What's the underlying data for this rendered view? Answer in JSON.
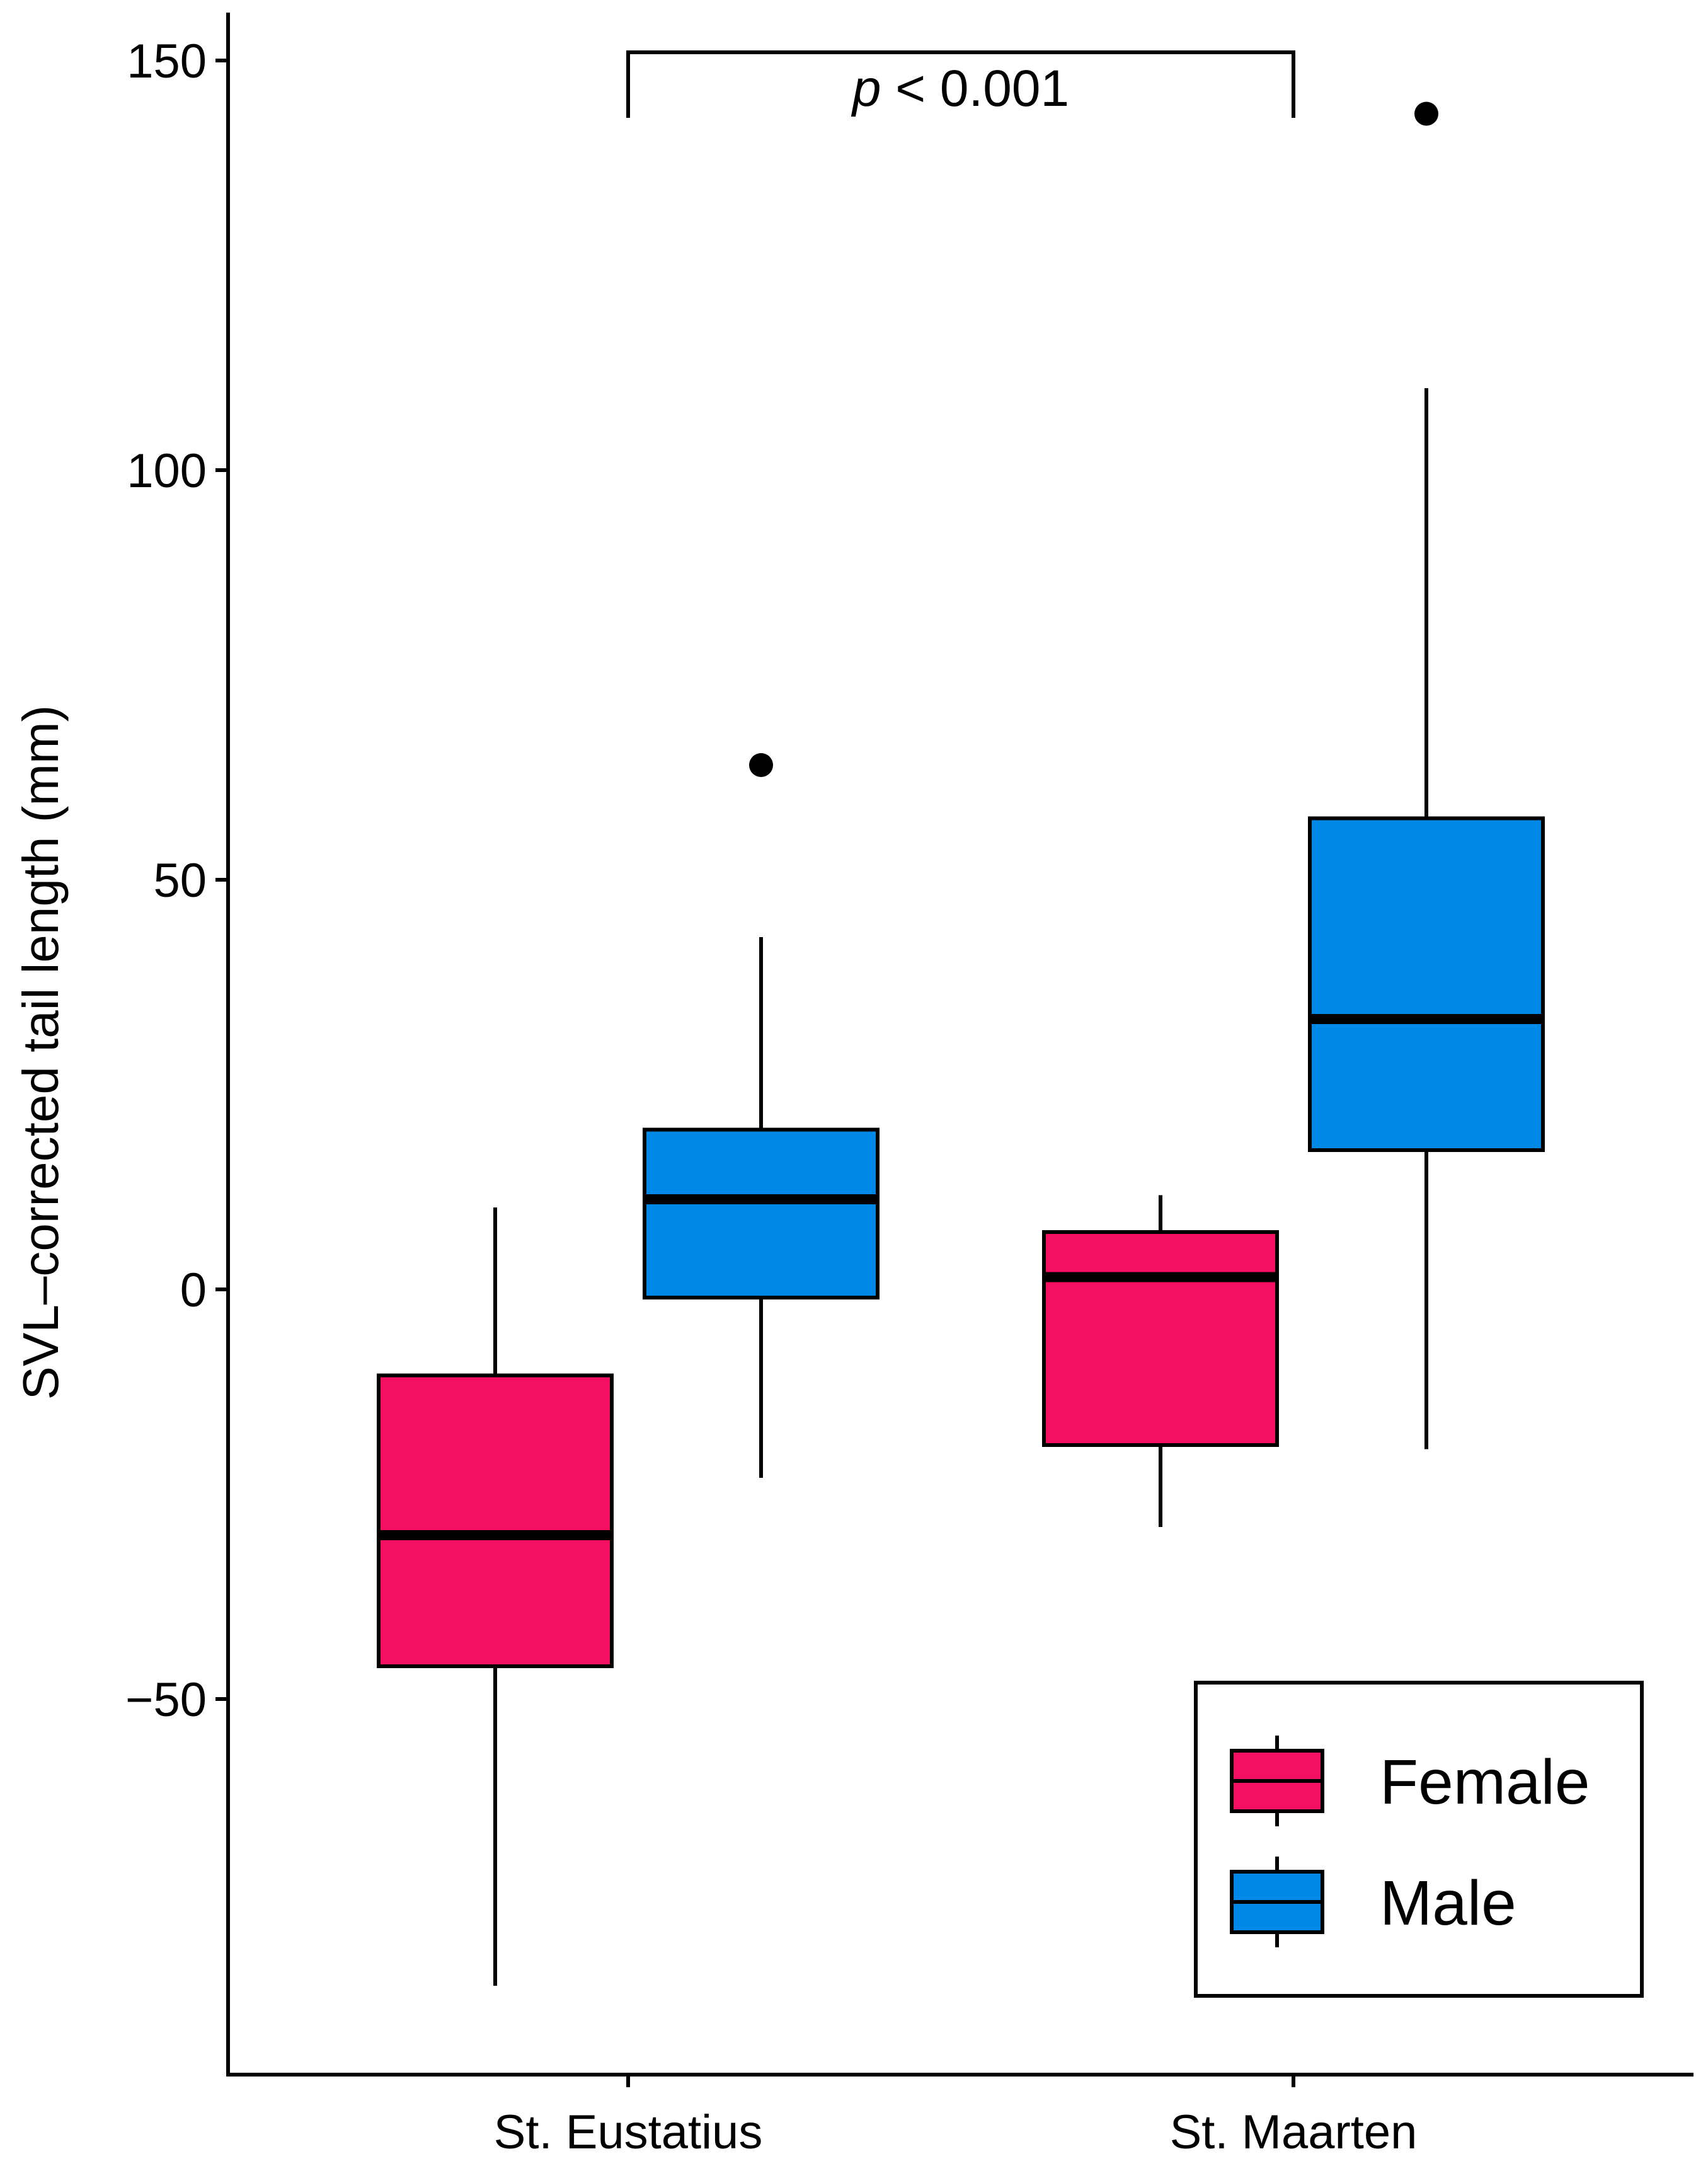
{
  "chart_data": {
    "type": "boxplot",
    "title": "",
    "xlabel": "",
    "ylabel": "SVL–corrected tail length (mm)",
    "ylim": [
      -95,
      157
    ],
    "yticks": [
      {
        "value": 150,
        "label": "150"
      },
      {
        "value": 100,
        "label": "100"
      },
      {
        "value": 50,
        "label": "50"
      },
      {
        "value": 0,
        "label": "0"
      },
      {
        "value": -50,
        "label": "−50"
      }
    ],
    "categories": [
      "St. Eustatius",
      "St. Maarten"
    ],
    "grid": false,
    "legend_position": "bottom-right",
    "series": [
      {
        "name": "Female",
        "color": "#F50F63",
        "boxes": [
          {
            "whisker_low": -85,
            "q1": -46,
            "median": -30,
            "q3": -10.5,
            "whisker_high": 10,
            "outliers": []
          },
          {
            "whisker_low": -29,
            "q1": -19,
            "median": 1.5,
            "q3": 7,
            "whisker_high": 11.5,
            "outliers": []
          }
        ]
      },
      {
        "name": "Male",
        "color": "#0088E6",
        "boxes": [
          {
            "whisker_low": -23,
            "q1": -1,
            "median": 11,
            "q3": 19.5,
            "whisker_high": 43,
            "outliers": [
              64
            ]
          },
          {
            "whisker_low": -19.5,
            "q1": 17,
            "median": 33,
            "q3": 57.5,
            "whisker_high": 110,
            "outliers": [
              143.5
            ]
          }
        ]
      }
    ],
    "annotations": [
      {
        "italic": "p",
        "text": " < 0.001",
        "between": [
          "St. Eustatius",
          "St. Maarten"
        ],
        "bracket_value": 151,
        "bracket_drop_to": 143
      }
    ]
  }
}
